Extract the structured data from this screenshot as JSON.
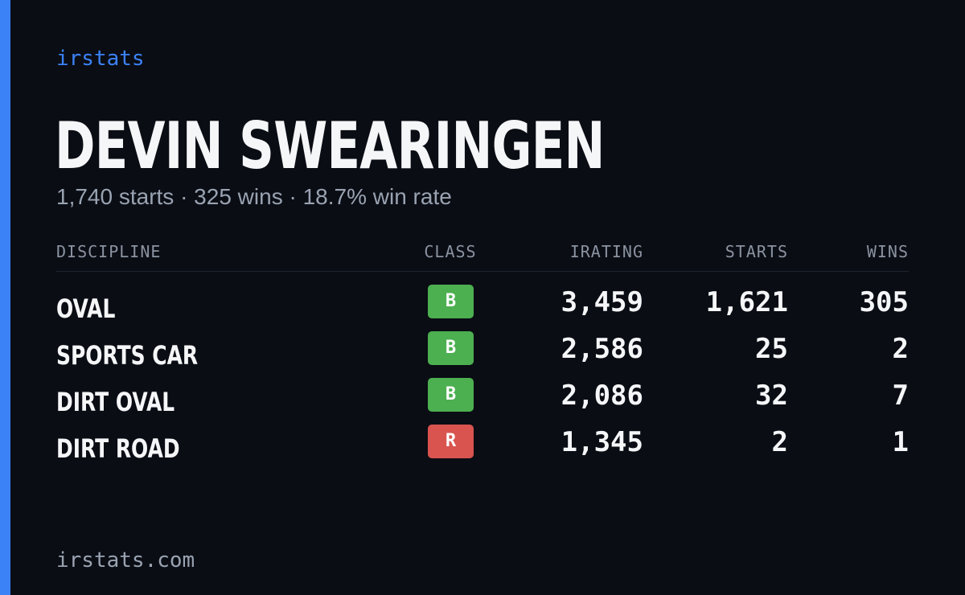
{
  "brand": "irstats",
  "driver_name": "DEVIN SWEARINGEN",
  "summary": "1,740 starts · 325 wins · 18.7% win rate",
  "table": {
    "headers": {
      "discipline": "DISCIPLINE",
      "class": "CLASS",
      "irating": "IRATING",
      "starts": "STARTS",
      "wins": "WINS"
    },
    "rows": [
      {
        "discipline": "OVAL",
        "class": "B",
        "class_color": "#4caf50",
        "irating": "3,459",
        "starts": "1,621",
        "wins": "305"
      },
      {
        "discipline": "SPORTS CAR",
        "class": "B",
        "class_color": "#4caf50",
        "irating": "2,586",
        "starts": "25",
        "wins": "2"
      },
      {
        "discipline": "DIRT OVAL",
        "class": "B",
        "class_color": "#4caf50",
        "irating": "2,086",
        "starts": "32",
        "wins": "7"
      },
      {
        "discipline": "DIRT ROAD",
        "class": "R",
        "class_color": "#d9534f",
        "irating": "1,345",
        "starts": "2",
        "wins": "1"
      }
    ]
  },
  "footer": "irstats.com",
  "colors": {
    "accent": "#3b82f6",
    "background": "#0a0d14"
  }
}
